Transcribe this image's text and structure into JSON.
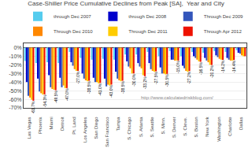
{
  "chart_data": {
    "type": "bar",
    "title": "Case-Shiller Price Cumulative Declines from Peak [SA],  Year and City",
    "categories": [
      "Las Vegas",
      "Phoenix",
      "Miami",
      "Detroit",
      "Pt. Land",
      "Los Angeles",
      "San Diego",
      "San Francisco",
      "Tampa",
      "S. Chicago",
      "S. Atlanta",
      "S. Seattle",
      "S. Minn.",
      "S. Denver",
      "S. Cleve.",
      "S. Boston",
      "New York",
      "Washington",
      "Charlotte",
      "Dallas"
    ],
    "series": [
      {
        "name": "through Dec 2007",
        "color": "#55CCEE",
        "values": [
          -15.5,
          -18.0,
          -17.0,
          -18.0,
          -5.0,
          -12.0,
          -14.0,
          -13.0,
          -14.0,
          -8.0,
          -8.0,
          -5.0,
          -10.0,
          -4.0,
          -10.0,
          -5.0,
          -6.0,
          -4.0,
          -5.0,
          -3.0
        ]
      },
      {
        "name": "through Dec 2008",
        "color": "#0000CC",
        "values": [
          -40.0,
          -36.0,
          -32.0,
          -35.0,
          -17.0,
          -30.0,
          -35.0,
          -36.0,
          -28.0,
          -16.0,
          -18.0,
          -18.0,
          -23.0,
          -14.0,
          -21.0,
          -10.0,
          -12.0,
          -9.0,
          -12.0,
          -6.0
        ]
      },
      {
        "name": "Through Dec 2009",
        "color": "#3355BB",
        "values": [
          -56.0,
          -51.0,
          -46.0,
          -46.0,
          -21.0,
          -36.0,
          -40.0,
          -45.0,
          -36.0,
          -22.0,
          -22.0,
          -25.0,
          -30.0,
          -14.0,
          -24.0,
          -12.0,
          -15.0,
          -11.0,
          -14.0,
          -7.0
        ]
      },
      {
        "name": "Through Dec 2010",
        "color": "#FF8800",
        "values": [
          -58.0,
          -53.0,
          -48.0,
          -44.0,
          -25.0,
          -38.0,
          -40.0,
          -43.0,
          -38.0,
          -24.0,
          -24.0,
          -27.0,
          -30.0,
          -15.0,
          -27.0,
          -14.0,
          -17.0,
          -13.0,
          -15.0,
          -9.0
        ]
      },
      {
        "name": "Through Dec 2011",
        "color": "#FFCC00",
        "values": [
          -60.5,
          -54.5,
          -49.0,
          -47.0,
          -27.0,
          -39.0,
          -41.5,
          -44.0,
          -39.0,
          -30.0,
          -32.0,
          -28.0,
          -31.0,
          -15.0,
          -28.0,
          -16.0,
          -20.0,
          -14.0,
          -15.0,
          -10.0
        ]
      },
      {
        "name": "Through Apr 2012",
        "color": "#EE1100",
        "data_labels": true,
        "values": [
          -61.7,
          -54.3,
          -49.5,
          -47.0,
          -27.0,
          -38.5,
          -41.0,
          -43.0,
          -38.5,
          -30.0,
          -33.2,
          -27.5,
          -30.5,
          -15.0,
          -27.2,
          -16.5,
          -20.2,
          -14.2,
          -14.4,
          -10.0
        ],
        "value_labels": [
          "-61.7%",
          "-54.3%",
          "-49.5%",
          "-47.0%",
          "-27.0%",
          "-38.5%",
          "-41.0%",
          "-43.0%",
          "-38.5%",
          "-30.0%",
          "-33.2%",
          "-27.5%",
          "-30.5%",
          "-15.0%",
          "-27.2%",
          "-16.5%",
          "-20.2%",
          "-14.2%",
          "-14.4%",
          null
        ]
      }
    ],
    "ylim": [
      -70,
      5
    ],
    "yticks": [
      {
        "value": 0,
        "label": "0%"
      },
      {
        "value": -10,
        "label": "-10%"
      },
      {
        "value": -20,
        "label": "-20%"
      },
      {
        "value": -30,
        "label": "-30%"
      },
      {
        "value": -40,
        "label": "-40%"
      },
      {
        "value": -50,
        "label": "-50%"
      },
      {
        "value": -60,
        "label": "-60%"
      },
      {
        "value": -70,
        "label": "-70%"
      }
    ],
    "grid": true,
    "legend": "top",
    "annotations": [
      "http://www.calculatedriskblog.com/"
    ]
  }
}
